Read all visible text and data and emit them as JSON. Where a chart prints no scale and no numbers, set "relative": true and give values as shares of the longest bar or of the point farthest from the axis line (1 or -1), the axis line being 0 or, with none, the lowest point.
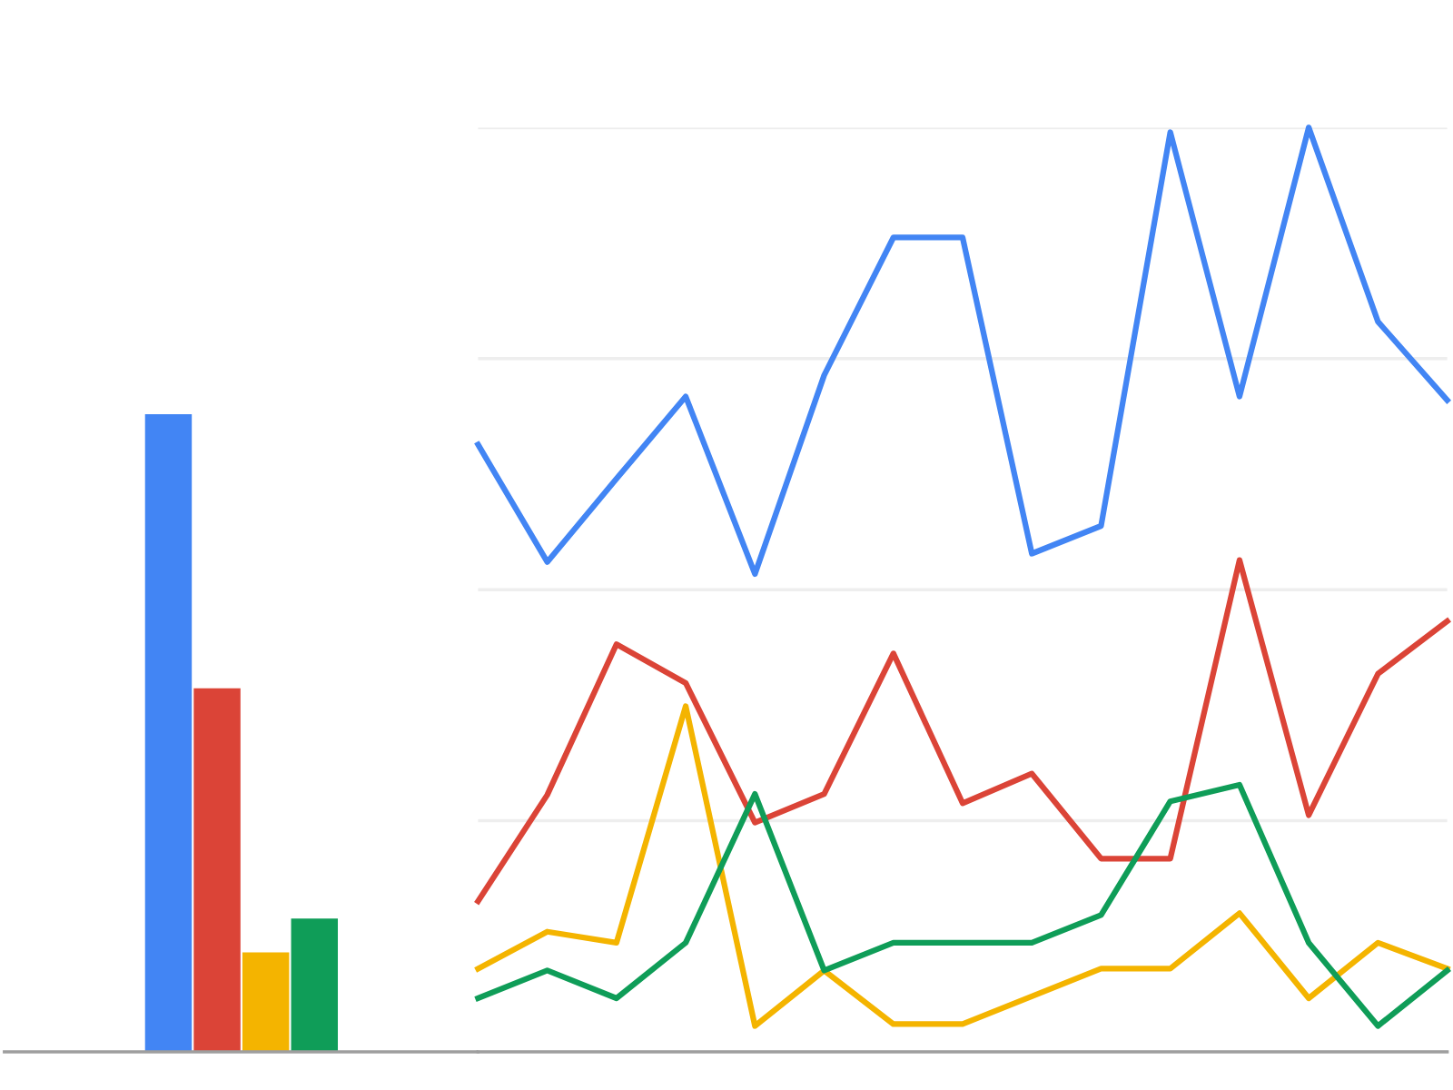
{
  "chart_data": [
    {
      "type": "bar",
      "relative": true,
      "categories": [
        null,
        null,
        null,
        null
      ],
      "values": [
        1,
        0.57,
        0.156,
        0.209
      ],
      "colors": [
        "#4285f4",
        "#db4437",
        "#f4b400",
        "#0f9d58"
      ],
      "grid": false,
      "legend": false
    },
    {
      "type": "line",
      "relative": true,
      "grid": "y",
      "legend": false,
      "marker": "none",
      "line_style": "solid",
      "categories": [
        null,
        null,
        null,
        null,
        null,
        null,
        null,
        null,
        null,
        null,
        null,
        null,
        null,
        null,
        null
      ],
      "series": [
        {
          "color": "#4285f4",
          "values": [
            0.657,
            0.53,
            0.62,
            0.709,
            0.517,
            0.732,
            0.881,
            0.881,
            0.539,
            0.569,
            0.995,
            0.709,
            1.0,
            0.79,
            0.705
          ]
        },
        {
          "color": "#db4437",
          "values": [
            0.163,
            0.278,
            0.441,
            0.399,
            0.248,
            0.279,
            0.431,
            0.269,
            0.301,
            0.209,
            0.209,
            0.532,
            0.256,
            0.409,
            0.466
          ]
        },
        {
          "color": "#f4b400",
          "values": [
            0.09,
            0.13,
            0.118,
            0.374,
            0.028,
            0.088,
            0.03,
            0.03,
            0.06,
            0.09,
            0.09,
            0.15,
            0.058,
            0.118,
            0.09
          ]
        },
        {
          "color": "#0f9d58",
          "values": [
            0.058,
            0.088,
            0.058,
            0.118,
            0.279,
            0.088,
            0.118,
            0.118,
            0.118,
            0.148,
            0.271,
            0.289,
            0.118,
            0.028,
            0.088
          ]
        }
      ]
    }
  ]
}
